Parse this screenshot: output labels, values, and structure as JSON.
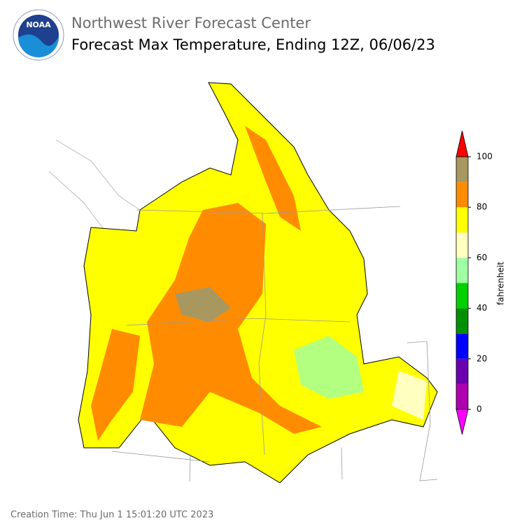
{
  "header": {
    "logo": "NOAA",
    "subtitle": "Northwest River Forecast Center",
    "title": "Forecast Max Temperature, Ending 12Z, 06/06/23"
  },
  "colorbar": {
    "label": "fahrenheit",
    "ticks": [
      0,
      20,
      40,
      60,
      80,
      100
    ],
    "bounds": [
      0,
      10,
      20,
      30,
      40,
      50,
      60,
      70,
      80,
      90,
      100
    ],
    "colors": [
      "#b000b0",
      "#6a00b0",
      "#0000ff",
      "#009000",
      "#00d000",
      "#a0ffa0",
      "#ffffc0",
      "#ffff00",
      "#ff8c00",
      "#a89860"
    ],
    "under_color": "#ff00ff",
    "over_color": "#ff0000"
  },
  "footer": {
    "creation_time": "Creation Time: Thu Jun 1 15:01:20 UTC 2023"
  }
}
